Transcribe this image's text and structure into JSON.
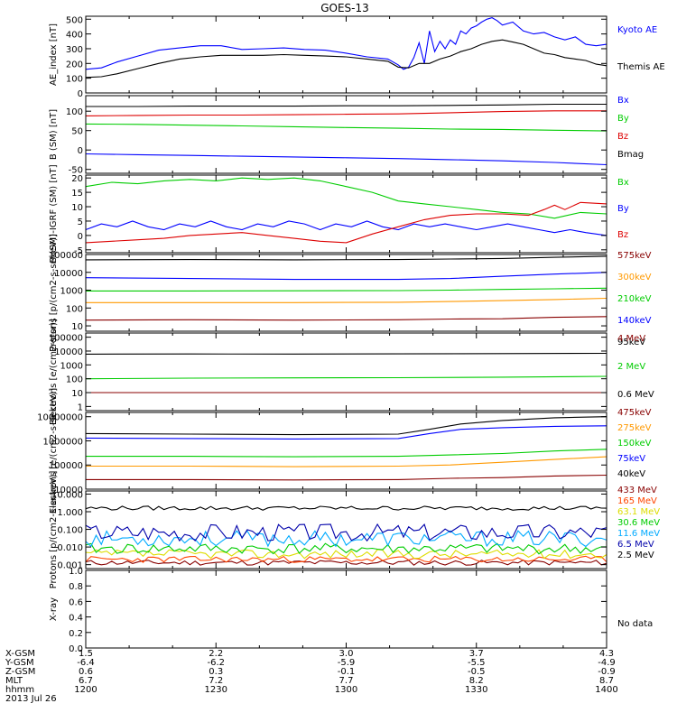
{
  "title": "GOES-13",
  "chart_data": [
    {
      "type": "line",
      "ylabel": "AE_index [nT]",
      "yscale": "linear",
      "ylim": [
        0,
        520
      ],
      "yticks": [
        0,
        100,
        200,
        300,
        400,
        500
      ],
      "ytick_labels": [
        "0",
        "100",
        "200",
        "300",
        "400",
        "500"
      ],
      "series": [
        {
          "name": "Kyoto AE",
          "color": "#0000ff",
          "x": [
            0,
            3,
            6,
            10,
            14,
            18,
            22,
            26,
            30,
            34,
            38,
            42,
            46,
            50,
            54,
            58,
            60,
            61,
            62,
            63,
            64,
            65,
            66,
            67,
            68,
            69,
            70,
            71,
            72,
            73,
            74,
            75,
            76,
            77,
            78,
            79,
            80,
            82,
            84,
            86,
            88,
            90,
            92,
            94,
            96,
            98,
            100
          ],
          "values": [
            160,
            170,
            210,
            250,
            290,
            305,
            320,
            320,
            295,
            300,
            305,
            295,
            290,
            270,
            245,
            230,
            190,
            160,
            175,
            240,
            340,
            200,
            420,
            280,
            350,
            300,
            360,
            330,
            420,
            400,
            440,
            455,
            480,
            500,
            510,
            490,
            460,
            480,
            420,
            400,
            410,
            380,
            360,
            380,
            330,
            320,
            330
          ]
        },
        {
          "name": "Themis AE",
          "color": "#000000",
          "x": [
            0,
            3,
            6,
            10,
            14,
            18,
            22,
            26,
            30,
            34,
            38,
            42,
            46,
            50,
            54,
            58,
            60,
            62,
            64,
            66,
            68,
            70,
            72,
            74,
            76,
            78,
            80,
            82,
            84,
            86,
            88,
            90,
            92,
            94,
            96,
            98,
            100
          ],
          "values": [
            105,
            110,
            130,
            165,
            200,
            230,
            245,
            255,
            255,
            255,
            260,
            255,
            250,
            245,
            230,
            215,
            175,
            170,
            200,
            200,
            230,
            250,
            280,
            300,
            330,
            350,
            360,
            345,
            330,
            300,
            270,
            260,
            240,
            230,
            220,
            195,
            185
          ]
        }
      ]
    },
    {
      "type": "line",
      "ylabel": "B (SM) [nT]",
      "yscale": "linear",
      "ylim": [
        -60,
        140
      ],
      "yticks": [
        -50,
        0,
        50,
        100
      ],
      "ytick_labels": [
        "-50",
        "0",
        "50",
        "100"
      ],
      "series": [
        {
          "name": "Bx",
          "color": "#0000ff",
          "x": [
            0,
            10,
            20,
            30,
            40,
            50,
            60,
            70,
            80,
            90,
            100
          ],
          "values": [
            -10,
            -12,
            -14,
            -16,
            -18,
            -20,
            -22,
            -25,
            -28,
            -32,
            -38
          ]
        },
        {
          "name": "By",
          "color": "#00cc00",
          "x": [
            0,
            10,
            20,
            30,
            40,
            50,
            60,
            70,
            80,
            90,
            100
          ],
          "values": [
            67,
            66,
            64,
            62,
            60,
            58,
            56,
            54,
            53,
            51,
            49
          ]
        },
        {
          "name": "Bz",
          "color": "#dd0000",
          "x": [
            0,
            10,
            20,
            30,
            40,
            50,
            60,
            70,
            80,
            90,
            100
          ],
          "values": [
            88,
            89,
            90,
            90,
            91,
            92,
            93,
            96,
            99,
            101,
            101
          ]
        },
        {
          "name": "Bmag",
          "color": "#000000",
          "x": [
            0,
            10,
            20,
            30,
            40,
            50,
            60,
            70,
            80,
            90,
            100
          ],
          "values": [
            112,
            112,
            113,
            113,
            113,
            114,
            114,
            115,
            116,
            118,
            118
          ]
        }
      ]
    },
    {
      "type": "line",
      "ylabel": "B (SM)-IGRF (SM) [nT]",
      "yscale": "linear",
      "ylim": [
        -6,
        21
      ],
      "yticks": [
        -5,
        0,
        5,
        10,
        15,
        20
      ],
      "ytick_labels": [
        "-5",
        "0",
        "5",
        "10",
        "15",
        "20"
      ],
      "series": [
        {
          "name": "Bx",
          "color": "#00cc00",
          "x": [
            0,
            5,
            10,
            15,
            20,
            25,
            30,
            35,
            40,
            45,
            50,
            55,
            60,
            65,
            70,
            75,
            80,
            85,
            90,
            95,
            100
          ],
          "values": [
            17,
            18.5,
            18,
            19,
            19.5,
            19,
            20,
            19.5,
            20,
            19,
            17,
            15,
            12,
            11,
            10,
            9,
            8,
            7.5,
            6,
            8,
            7.5
          ]
        },
        {
          "name": "By",
          "color": "#0000ff",
          "x": [
            0,
            3,
            6,
            9,
            12,
            15,
            18,
            21,
            24,
            27,
            30,
            33,
            36,
            39,
            42,
            45,
            48,
            51,
            54,
            57,
            60,
            63,
            66,
            69,
            72,
            75,
            78,
            81,
            84,
            87,
            90,
            93,
            96,
            100
          ],
          "values": [
            2,
            4,
            3,
            5,
            3,
            2,
            4,
            3,
            5,
            3,
            2,
            4,
            3,
            5,
            4,
            2,
            4,
            3,
            5,
            3,
            2,
            4,
            3,
            4,
            3,
            2,
            3,
            4,
            3,
            2,
            1,
            2,
            1,
            0
          ]
        },
        {
          "name": "Bz",
          "color": "#dd0000",
          "x": [
            0,
            5,
            10,
            15,
            20,
            25,
            30,
            35,
            40,
            45,
            50,
            55,
            60,
            65,
            70,
            75,
            80,
            85,
            88,
            90,
            92,
            95,
            100
          ],
          "values": [
            -2.5,
            -2,
            -1.5,
            -1,
            0,
            0.5,
            1,
            0,
            -1,
            -2,
            -2.5,
            0.5,
            3,
            5.5,
            7,
            7.5,
            7.5,
            7,
            9,
            10.5,
            9,
            11.5,
            11
          ]
        }
      ]
    },
    {
      "type": "line",
      "ylabel": "Protons [p/(cm2-s-sr-keV)]",
      "yscale": "log",
      "ylim": [
        5,
        100000
      ],
      "yticks": [
        10,
        100,
        1000,
        10000,
        100000
      ],
      "ytick_labels": [
        "10",
        "100",
        "1000",
        "10000",
        "100000"
      ],
      "series": [
        {
          "name": "575keV",
          "color": "#880000",
          "x": [
            0,
            20,
            40,
            60,
            70,
            80,
            90,
            100
          ],
          "values": [
            21,
            22,
            21,
            22,
            24,
            25,
            30,
            33
          ]
        },
        {
          "name": "300keV",
          "color": "#ff9900",
          "x": [
            0,
            20,
            40,
            60,
            70,
            80,
            90,
            100
          ],
          "values": [
            200,
            200,
            200,
            210,
            230,
            260,
            300,
            350
          ]
        },
        {
          "name": "210keV",
          "color": "#00cc00",
          "x": [
            0,
            20,
            40,
            60,
            70,
            80,
            90,
            100
          ],
          "values": [
            900,
            900,
            920,
            950,
            1000,
            1100,
            1200,
            1300
          ]
        },
        {
          "name": "140keV",
          "color": "#0000ff",
          "x": [
            0,
            20,
            40,
            60,
            70,
            80,
            90,
            100
          ],
          "values": [
            5000,
            4500,
            4000,
            4000,
            4500,
            6000,
            8000,
            10000
          ]
        },
        {
          "name": "95keV",
          "color": "#000000",
          "x": [
            0,
            20,
            40,
            60,
            70,
            80,
            90,
            100
          ],
          "values": [
            50000,
            52000,
            50000,
            52000,
            56000,
            60000,
            70000,
            80000
          ]
        }
      ]
    },
    {
      "type": "line",
      "ylabel": "Electrons [e/(cm2-s-sr)]",
      "yscale": "log",
      "ylim": [
        0.5,
        200000
      ],
      "yticks": [
        1,
        10,
        100,
        1000,
        10000,
        100000
      ],
      "ytick_labels": [
        "1",
        "10",
        "100",
        "1000",
        "10000",
        "100000"
      ],
      "series": [
        {
          "name": "4 MeV",
          "color": "#880000",
          "x": [
            0,
            20,
            40,
            60,
            80,
            100
          ],
          "values": [
            10,
            10,
            10,
            10,
            10,
            10
          ]
        },
        {
          "name": "2 MeV",
          "color": "#00cc00",
          "x": [
            0,
            20,
            40,
            60,
            80,
            100
          ],
          "values": [
            100,
            110,
            115,
            120,
            130,
            150
          ]
        },
        {
          "name": "0.6 MeV",
          "color": "#000000",
          "x": [
            0,
            20,
            40,
            60,
            80,
            100
          ],
          "values": [
            6000,
            6200,
            6100,
            6300,
            6500,
            6800
          ]
        }
      ]
    },
    {
      "type": "line",
      "ylabel": "Electrons [e/(cm2-s-sr-keV)]",
      "yscale": "log",
      "ylim": [
        10000,
        15000000
      ],
      "yticks": [
        10000,
        100000,
        1000000,
        10000000
      ],
      "ytick_labels": [
        "10000",
        "100000",
        "1000000",
        "10000000"
      ],
      "series": [
        {
          "name": "475keV",
          "color": "#880000",
          "x": [
            0,
            20,
            40,
            60,
            70,
            80,
            90,
            100
          ],
          "values": [
            25000,
            25000,
            24000,
            25000,
            28000,
            30000,
            35000,
            38000
          ]
        },
        {
          "name": "275keV",
          "color": "#ff9900",
          "x": [
            0,
            20,
            40,
            60,
            70,
            80,
            90,
            100
          ],
          "values": [
            90000,
            90000,
            85000,
            90000,
            100000,
            130000,
            170000,
            220000
          ]
        },
        {
          "name": "150keV",
          "color": "#00cc00",
          "x": [
            0,
            20,
            40,
            60,
            70,
            80,
            90,
            100
          ],
          "values": [
            230000,
            230000,
            220000,
            230000,
            260000,
            300000,
            380000,
            450000
          ]
        },
        {
          "name": "75keV",
          "color": "#0000ff",
          "x": [
            0,
            20,
            40,
            60,
            66,
            72,
            80,
            90,
            100
          ],
          "values": [
            1300000,
            1250000,
            1200000,
            1250000,
            2000000,
            3000000,
            3500000,
            4000000,
            4200000
          ]
        },
        {
          "name": "40keV",
          "color": "#000000",
          "x": [
            0,
            20,
            40,
            60,
            66,
            72,
            80,
            90,
            100
          ],
          "values": [
            2000000,
            1900000,
            1800000,
            1900000,
            3000000,
            5000000,
            7000000,
            9000000,
            10000000
          ]
        }
      ]
    },
    {
      "type": "line",
      "ylabel": "Protons [p/(cm2-s-sr-keV)]",
      "yscale": "log",
      "ylim": [
        0.0006,
        15
      ],
      "yticks": [
        0.001,
        0.01,
        0.1,
        1,
        10
      ],
      "ytick_labels": [
        "0.001",
        "0.010",
        "0.100",
        "1.000",
        "10.000"
      ],
      "series": [
        {
          "name": "433 MeV",
          "color": "#880000",
          "level": 0.0013,
          "noise": 0.15,
          "seed": 11
        },
        {
          "name": "165 MeV",
          "color": "#ff4400",
          "level": 0.002,
          "noise": 0.18,
          "seed": 23
        },
        {
          "name": "63.1 MeV",
          "color": "#dddd00",
          "level": 0.004,
          "noise": 0.25,
          "seed": 37
        },
        {
          "name": "30.6 MeV",
          "color": "#00cc00",
          "level": 0.008,
          "noise": 0.3,
          "seed": 41
        },
        {
          "name": "11.6 MeV",
          "color": "#00aaff",
          "level": 0.03,
          "noise": 0.45,
          "seed": 53
        },
        {
          "name": "6.5 MeV",
          "color": "#0000aa",
          "level": 0.07,
          "noise": 0.5,
          "seed": 67
        },
        {
          "name": "2.5 MeV",
          "color": "#000000",
          "level": 1.6,
          "noise": 0.12,
          "seed": 79
        }
      ]
    },
    {
      "type": "line",
      "ylabel": "X-ray",
      "yscale": "linear",
      "ylim": [
        0,
        1
      ],
      "yticks": [
        0,
        0.2,
        0.4,
        0.6,
        0.8,
        1
      ],
      "ytick_labels": [
        "0.0",
        "0.2",
        "0.4",
        "0.6",
        "0.8",
        "1.0"
      ],
      "legend_text": "No data",
      "series": []
    }
  ],
  "xaxis": {
    "row_labels": [
      "X-GSM",
      "Y-GSM",
      "Z-GSM",
      "MLT",
      "hhmm"
    ],
    "columns": [
      [
        "1.5",
        "-6.4",
        "0.6",
        "6.7",
        "1200"
      ],
      [
        "2.2",
        "-6.2",
        "0.3",
        "7.2",
        "1230"
      ],
      [
        "3.0",
        "-5.9",
        "-0.1",
        "7.7",
        "1300"
      ],
      [
        "3.7",
        "-5.5",
        "-0.5",
        "8.2",
        "1330"
      ],
      [
        "4.3",
        "-4.9",
        "-0.9",
        "8.7",
        "1400"
      ]
    ],
    "date": "2013 Jul 26"
  }
}
